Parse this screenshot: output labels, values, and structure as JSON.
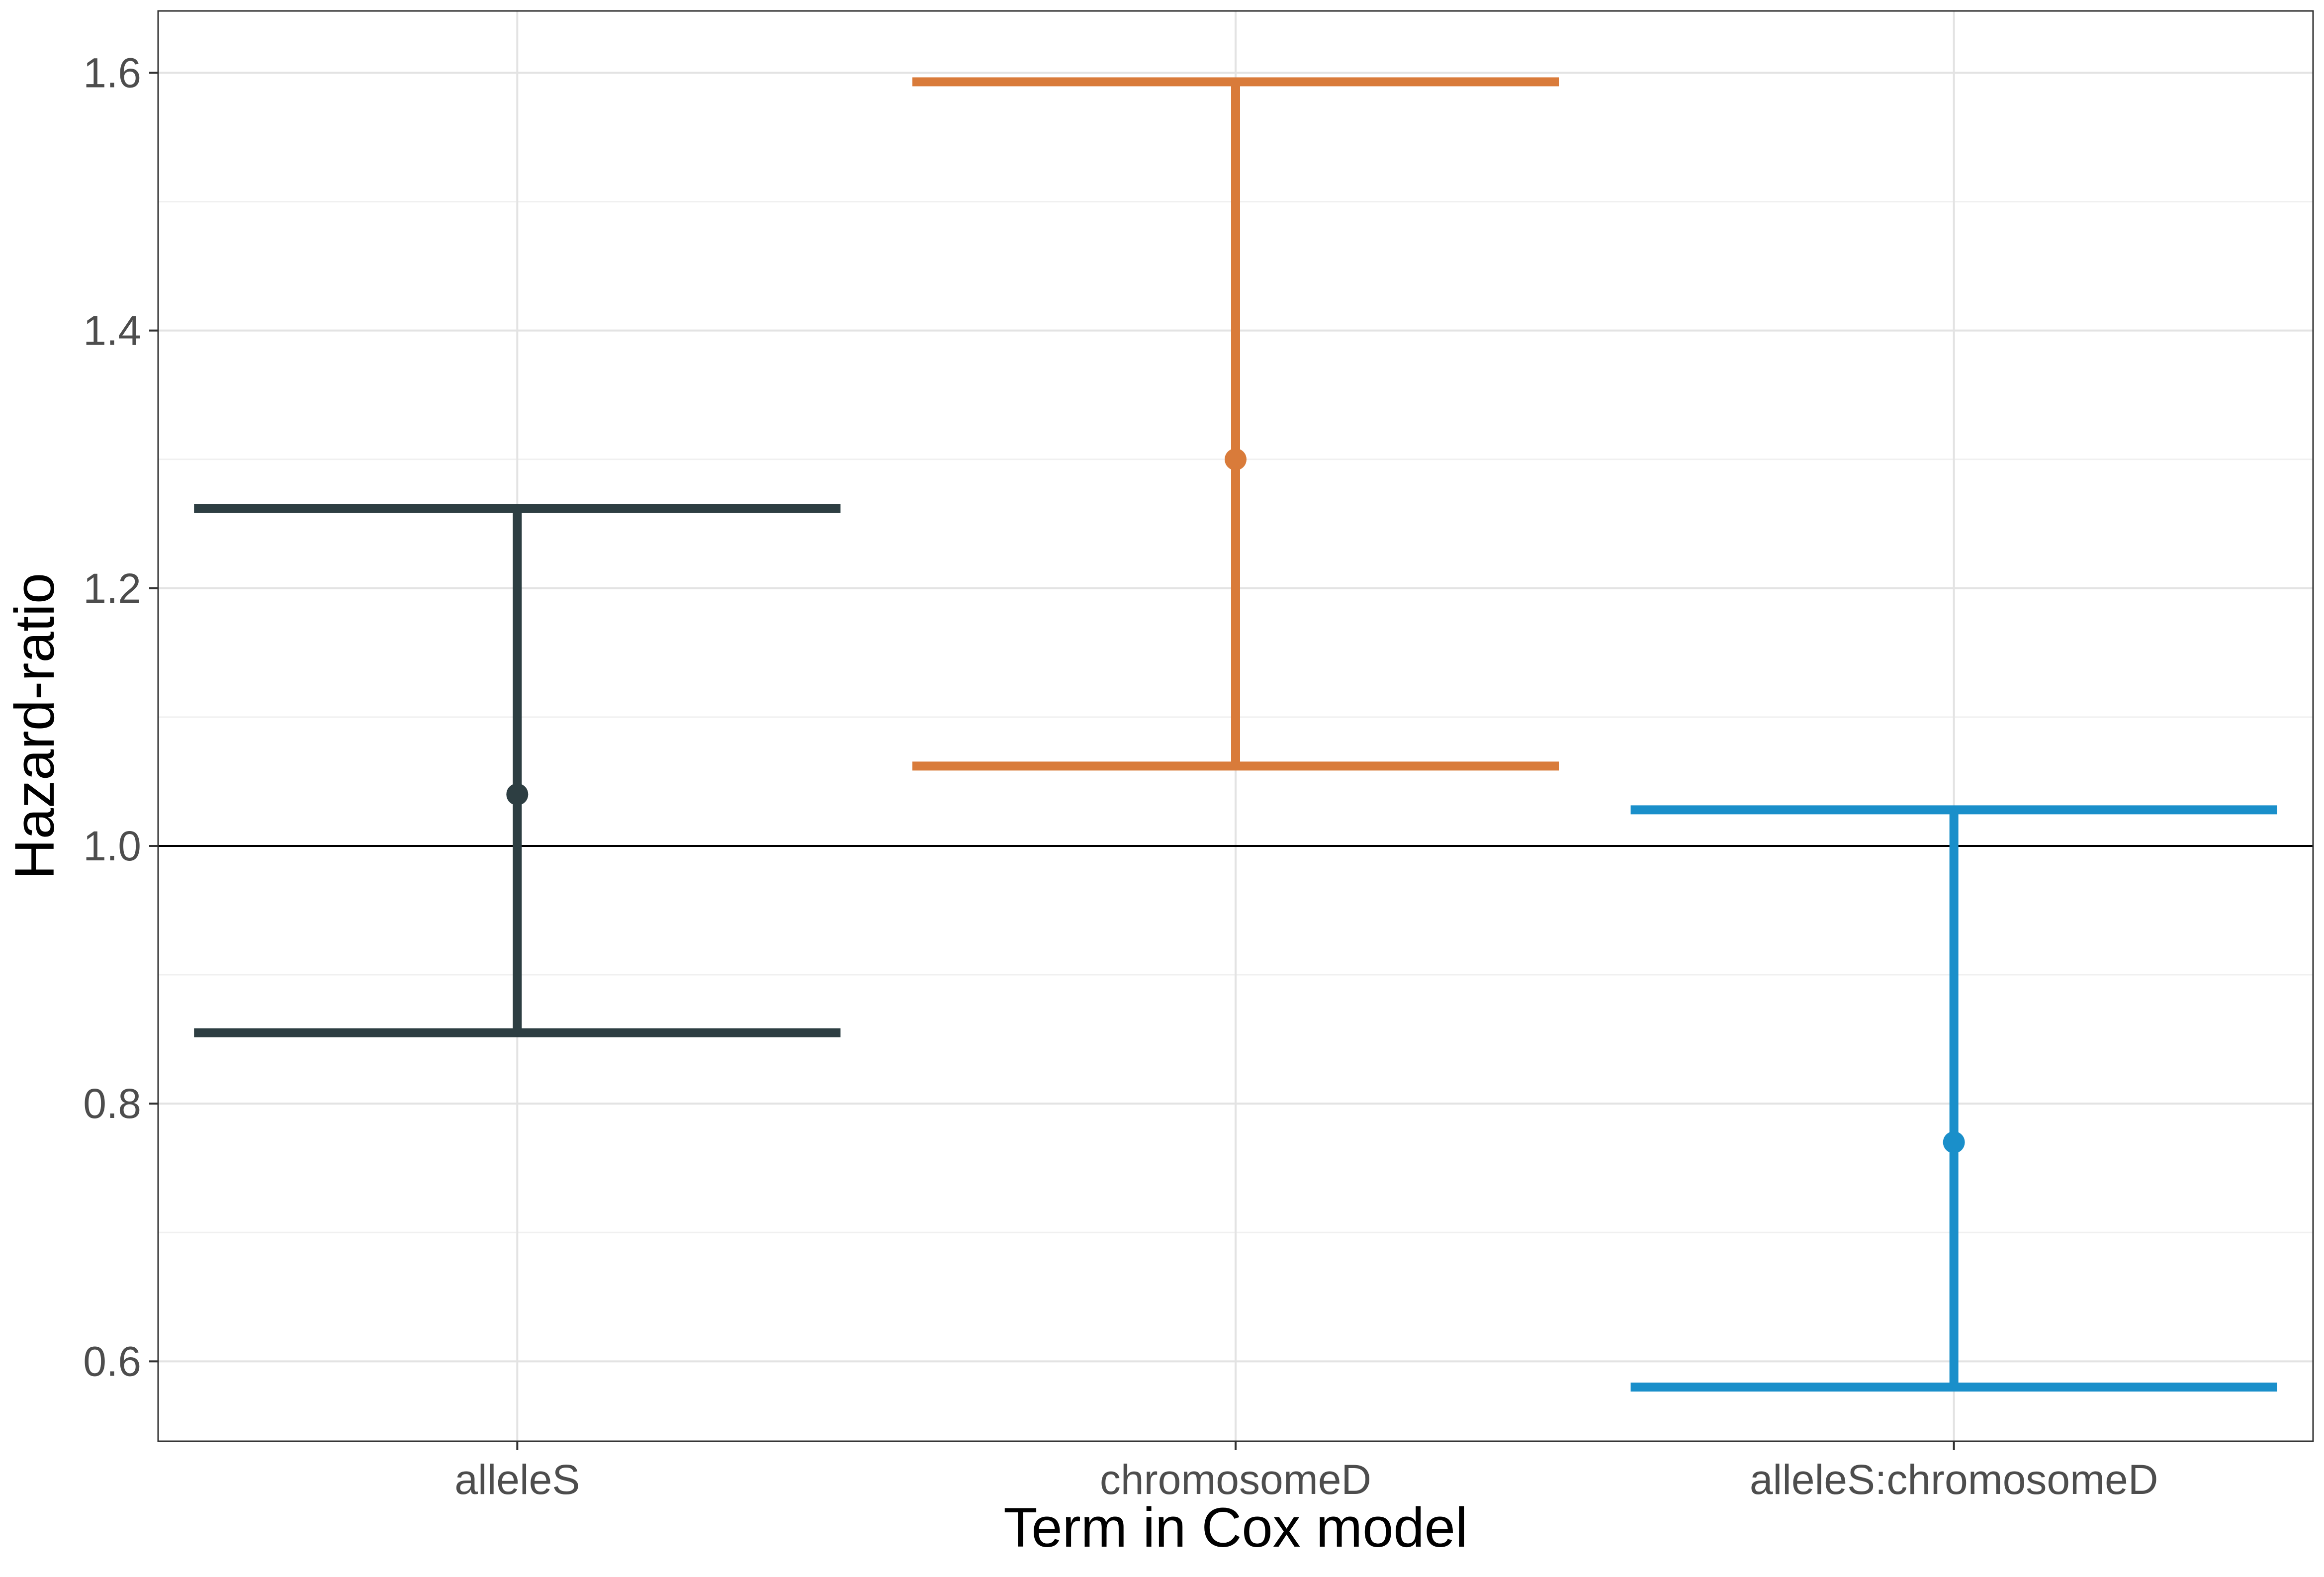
{
  "chart_data": {
    "type": "errorbar",
    "title": "",
    "xlabel": "Term in Cox model",
    "ylabel": "Hazard-ratio",
    "categories": [
      "alleleS",
      "chromosomeD",
      "alleleS:chromosomeD"
    ],
    "values": [
      1.04,
      1.3,
      0.77
    ],
    "lower": [
      0.855,
      1.062,
      0.58
    ],
    "upper": [
      1.262,
      1.593,
      1.028
    ],
    "colors": [
      "#2d3e42",
      "#d97b3a",
      "#1a8fca"
    ],
    "ylim": [
      0.538,
      1.648
    ],
    "yticks": [
      0.6,
      0.8,
      1.0,
      1.2,
      1.4,
      1.6
    ],
    "ytick_labels": [
      "0.6",
      "0.8",
      "1.0",
      "1.2",
      "1.4",
      "1.6"
    ],
    "reference_line": 1.0,
    "grid": true,
    "legend": "none"
  }
}
